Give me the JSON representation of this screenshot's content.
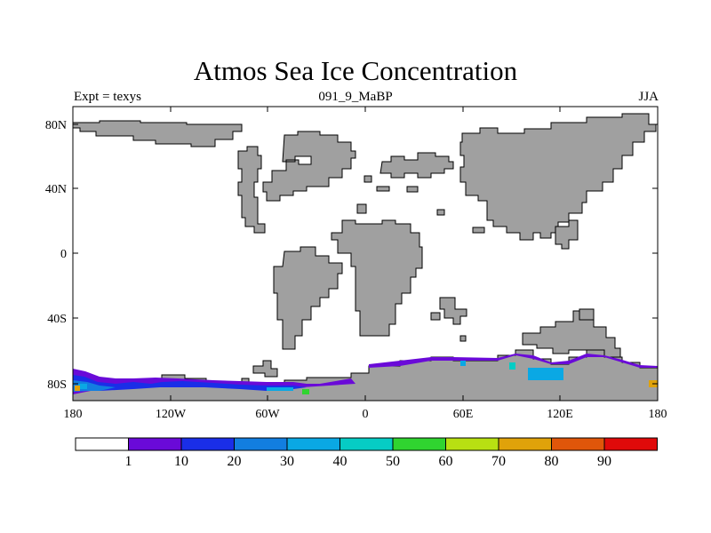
{
  "title": "Atmos Sea Ice Concentration",
  "left_label": "Expt = texys",
  "center_label": "091_9_MaBP",
  "right_label": "JJA",
  "colors": {
    "land": "#a0a0a0",
    "ocean": "#ffffff",
    "coast": "#000000"
  },
  "axes": {
    "lon_ticks": [
      "180",
      "120W",
      "60W",
      "0",
      "60E",
      "120E",
      "180"
    ],
    "lat_ticks": [
      "80N",
      "40N",
      "0",
      "40S",
      "80S"
    ]
  },
  "colorbar": {
    "labels": [
      "1",
      "10",
      "20",
      "30",
      "40",
      "50",
      "60",
      "70",
      "80",
      "90"
    ],
    "colors": [
      "#ffffff",
      "#6a0ad8",
      "#1a2ee8",
      "#127ee0",
      "#0aa8e4",
      "#06ccc4",
      "#30d430",
      "#b8e012",
      "#e0a20a",
      "#e0560a",
      "#e00a0a"
    ]
  }
}
